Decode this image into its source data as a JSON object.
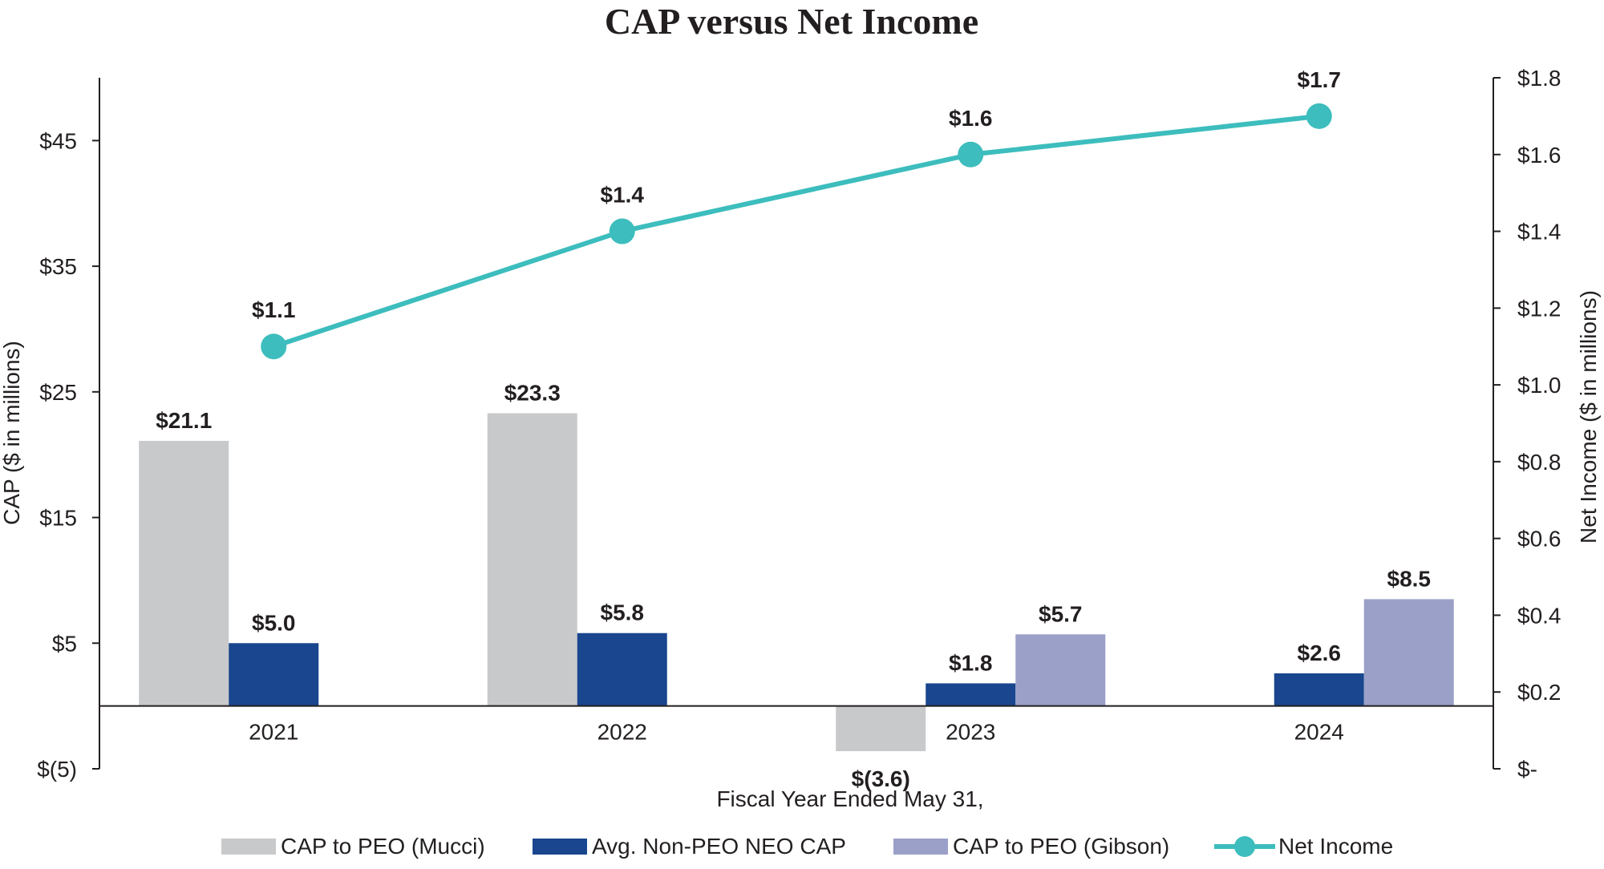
{
  "chart_data": {
    "type": "bar+line",
    "title": "CAP versus Net Income",
    "xlabel": "Fiscal Year Ended May 31,",
    "ylabel_left": "CAP ($ in millions)",
    "ylabel_right": "Net Income ($ in millions)",
    "categories": [
      "2021",
      "2022",
      "2023",
      "2024"
    ],
    "y_left": {
      "min": -5,
      "max": 50,
      "tick_values": [
        -5,
        5,
        15,
        25,
        35,
        45
      ],
      "tick_labels": [
        "$(5)",
        "$5",
        "$15",
        "$25",
        "$35",
        "$45"
      ]
    },
    "y_right": {
      "min": 0,
      "max": 1.8,
      "tick_values": [
        0,
        0.2,
        0.4,
        0.6,
        0.8,
        1.0,
        1.2,
        1.4,
        1.6,
        1.8
      ],
      "tick_labels": [
        "$-",
        "$0.2",
        "$0.4",
        "$0.6",
        "$0.8",
        "$1.0",
        "$1.2",
        "$1.4",
        "$1.6",
        "$1.8"
      ]
    },
    "series": [
      {
        "name": "CAP to PEO (Mucci)",
        "kind": "bar",
        "axis": "left",
        "color": "#c8c9cb",
        "values": [
          21.1,
          23.3,
          -3.6,
          null
        ],
        "labels": [
          "$21.1",
          "$23.3",
          "$(3.6)",
          null
        ]
      },
      {
        "name": "Avg. Non-PEO NEO CAP",
        "kind": "bar",
        "axis": "left",
        "color": "#19468e",
        "values": [
          5.0,
          5.8,
          1.8,
          2.6
        ],
        "labels": [
          "$5.0",
          "$5.8",
          "$1.8",
          "$2.6"
        ]
      },
      {
        "name": "CAP to PEO (Gibson)",
        "kind": "bar",
        "axis": "left",
        "color": "#9aa0c8",
        "values": [
          null,
          null,
          5.7,
          8.5
        ],
        "labels": [
          null,
          null,
          "$5.7",
          "$8.5"
        ]
      },
      {
        "name": "Net Income",
        "kind": "line",
        "axis": "right",
        "color": "#3dbdbd",
        "values": [
          1.1,
          1.4,
          1.6,
          1.7
        ],
        "labels": [
          "$1.1",
          "$1.4",
          "$1.6",
          "$1.7"
        ]
      }
    ],
    "legend_position": "bottom"
  }
}
